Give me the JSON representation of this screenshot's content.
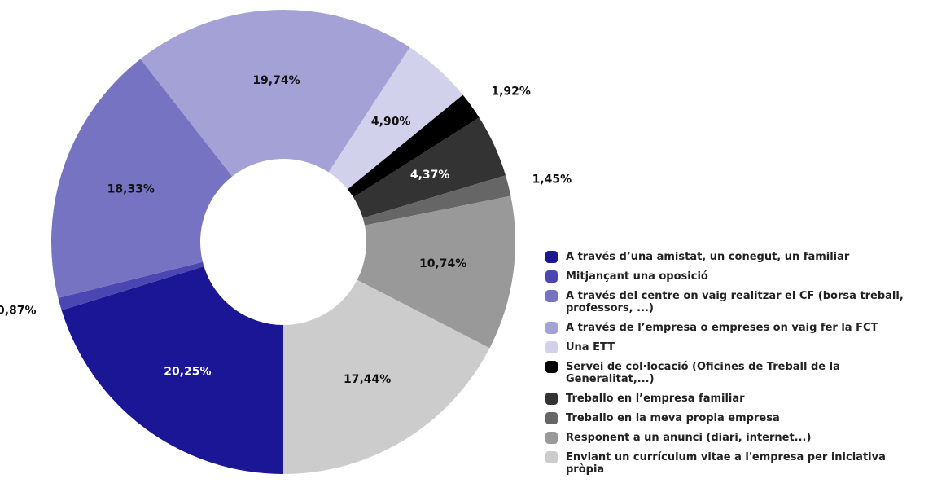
{
  "chart_data": {
    "type": "donut",
    "categories": [
      "A través d’una amistat, un conegut, un familiar",
      "Mitjançant una oposició",
      "A través del centre on vaig realitzar el CF (borsa treball, professors, ...)",
      "A través de l’empresa o empreses on vaig fer la FCT",
      "Una ETT",
      "Servei de col·locació (Oficines de Treball de la Generalitat,...)",
      "Treballo en l’empresa familiar",
      "Treballo en la meva propia empresa",
      "Responent a un anunci (diari, internet...)",
      "Enviant un currículum vitae a l'empresa per iniciativa pròpia"
    ],
    "values": [
      20.25,
      0.87,
      18.33,
      19.74,
      4.9,
      1.92,
      4.37,
      1.45,
      10.74,
      17.44
    ],
    "value_labels": [
      "20,25%",
      "0,87%",
      "18,33%",
      "19,74%",
      "4,90%",
      "1,92%",
      "4,37%",
      "1,45%",
      "10,74%",
      "17,44%"
    ],
    "colors": [
      "#1a1696",
      "#4a47b3",
      "#7673c2",
      "#a3a1d6",
      "#d2d1eb",
      "#000000",
      "#333333",
      "#666666",
      "#999999",
      "#cccccc"
    ],
    "legend": "bottom-right"
  }
}
